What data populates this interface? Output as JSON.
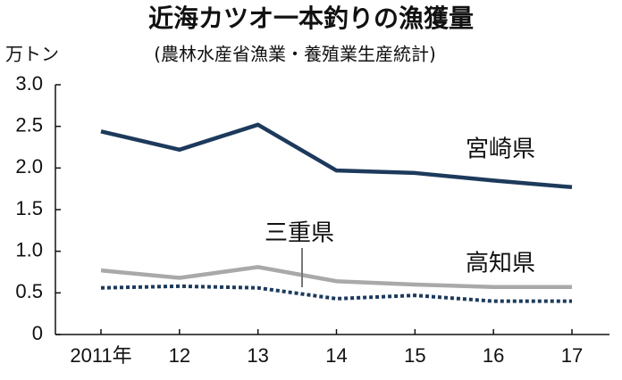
{
  "chart_data": {
    "type": "line",
    "title": "近海カツオ一本釣りの漁獲量",
    "subtitle": "(農林水産省漁業・養殖業生産統計)",
    "y_label": "万トン",
    "categories": [
      "2011年",
      "12",
      "13",
      "14",
      "15",
      "16",
      "17"
    ],
    "series": [
      {
        "name": "宮崎県",
        "color": "#1d3a5c",
        "line_style": "solid",
        "values": [
          2.44,
          2.22,
          2.52,
          1.97,
          1.94,
          1.85,
          1.77
        ]
      },
      {
        "name": "高知県",
        "color": "#a9a9a9",
        "line_style": "solid",
        "values": [
          0.77,
          0.68,
          0.81,
          0.64,
          0.6,
          0.57,
          0.57
        ]
      },
      {
        "name": "三重県",
        "color": "#1d3a5c",
        "line_style": "dotted",
        "values": [
          0.56,
          0.58,
          0.56,
          0.43,
          0.47,
          0.4,
          0.4
        ]
      }
    ],
    "ylim": [
      0,
      3
    ],
    "yticks": [
      0,
      0.5,
      {
        "value": 1,
        "label": "1.0"
      },
      1.5,
      {
        "value": 2,
        "label": "2.0"
      },
      2.5,
      {
        "value": 3,
        "label": "3.0"
      }
    ],
    "grid": false
  }
}
